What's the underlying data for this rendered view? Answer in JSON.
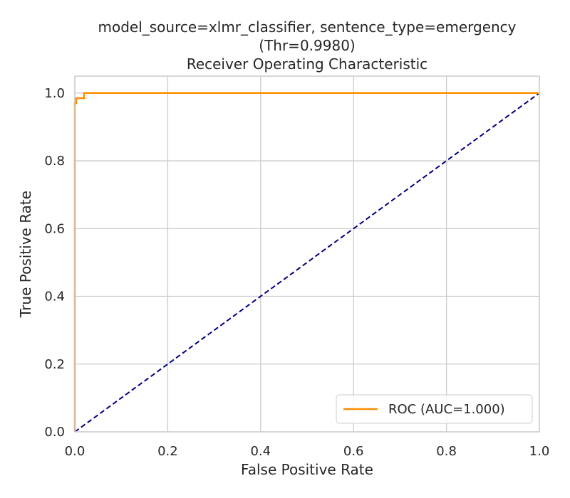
{
  "chart_data": {
    "type": "line",
    "title_lines": [
      "model_source=xlmr_classifier, sentence_type=emergency",
      "(Thr=0.9980)",
      "Receiver Operating Characteristic"
    ],
    "xlabel": "False Positive Rate",
    "ylabel": "True Positive Rate",
    "xlim": [
      0.0,
      1.0
    ],
    "ylim": [
      0.0,
      1.05
    ],
    "xticks": [
      0.0,
      0.2,
      0.4,
      0.6,
      0.8,
      1.0
    ],
    "yticks": [
      0.0,
      0.2,
      0.4,
      0.6,
      0.8,
      1.0
    ],
    "xtick_labels": [
      "0.0",
      "0.2",
      "0.4",
      "0.6",
      "0.8",
      "1.0"
    ],
    "ytick_labels": [
      "0.0",
      "0.2",
      "0.4",
      "0.6",
      "0.8",
      "1.0"
    ],
    "grid": true,
    "legend_position": "lower-right",
    "series": [
      {
        "name": "ROC (AUC=1.000)",
        "color": "#ff8c00",
        "style": "solid",
        "x": [
          0.0,
          0.0,
          0.003,
          0.003,
          0.008,
          0.008,
          0.02,
          0.02,
          1.0
        ],
        "y": [
          0.0,
          0.97,
          0.97,
          0.985,
          0.985,
          0.985,
          0.985,
          1.0,
          1.0
        ]
      },
      {
        "color": "#000080",
        "style": "dashed",
        "x": [
          0.0,
          1.0
        ],
        "y": [
          0.0,
          1.0
        ]
      }
    ]
  }
}
